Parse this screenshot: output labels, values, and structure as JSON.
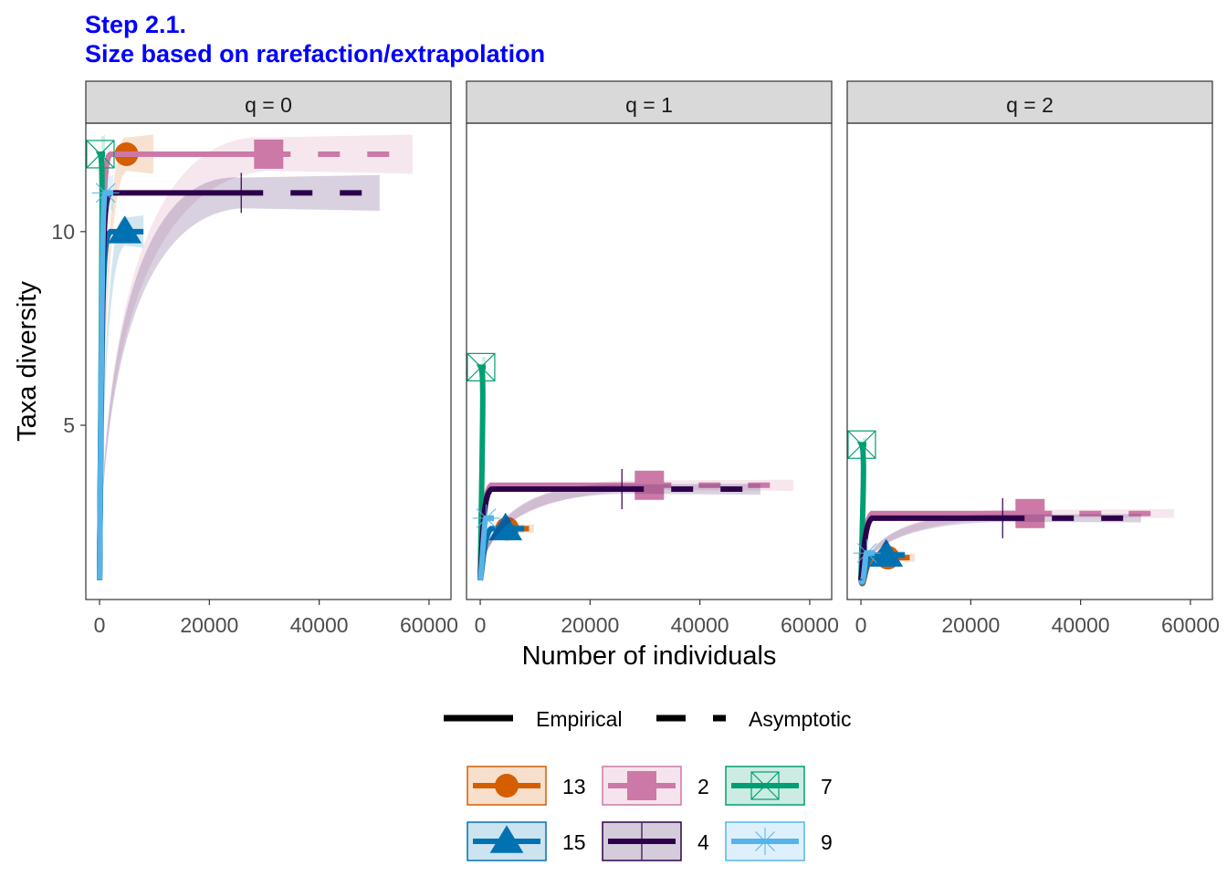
{
  "title_line1": "Step 2.1.",
  "title_line2": "Size based on rarefaction/extrapolation",
  "chart_data": {
    "type": "line",
    "xlabel": "Number of individuals",
    "ylabel": "Taxa diversity",
    "xlim": [
      -2500,
      64000
    ],
    "ylim": [
      0.5,
      12.8
    ],
    "x_ticks": [
      0,
      20000,
      40000,
      60000
    ],
    "y_ticks": [
      5,
      10
    ],
    "grid": false,
    "legend_position": "bottom",
    "linetype_legend": [
      "Empirical",
      "Asymptotic"
    ],
    "facets": [
      "q = 0",
      "q = 1",
      "q = 2"
    ],
    "series": [
      {
        "name": "13",
        "color": "#D55E00",
        "shape": "circle",
        "observed": {
          "x": 4900,
          "y": [
            12,
            2.33,
            1.58
          ]
        },
        "extrap_end": 9800,
        "start": [
          1,
          1,
          1
        ]
      },
      {
        "name": "2",
        "color": "#CC79A7",
        "shape": "square",
        "observed": {
          "x": 30800,
          "y": [
            12,
            3.45,
            2.72
          ]
        },
        "extrap_end": 57000,
        "start": [
          1,
          1,
          1
        ]
      },
      {
        "name": "7",
        "color": "#009E73",
        "shape": "square-x",
        "observed": {
          "x": 150,
          "y": [
            12,
            6.5,
            4.5
          ]
        },
        "extrap_end": 1000,
        "start": [
          1,
          1,
          1
        ]
      },
      {
        "name": "15",
        "color": "#0072B2",
        "shape": "triangle",
        "observed": {
          "x": 4600,
          "y": [
            10,
            2.33,
            1.65
          ]
        },
        "extrap_end": 8000,
        "start": [
          1,
          1,
          1
        ]
      },
      {
        "name": "4",
        "color": "#2D004B",
        "shape": "plus",
        "observed": {
          "x": 25800,
          "y": [
            11,
            3.35,
            2.6
          ]
        },
        "extrap_end": 51000,
        "start": [
          1,
          1,
          1
        ]
      },
      {
        "name": "9",
        "color": "#56B4E9",
        "shape": "asterisk",
        "observed": {
          "x": 1100,
          "y": [
            11,
            2.6,
            1.7
          ]
        },
        "extrap_end": 2500,
        "start": [
          1,
          1,
          1
        ]
      }
    ]
  }
}
